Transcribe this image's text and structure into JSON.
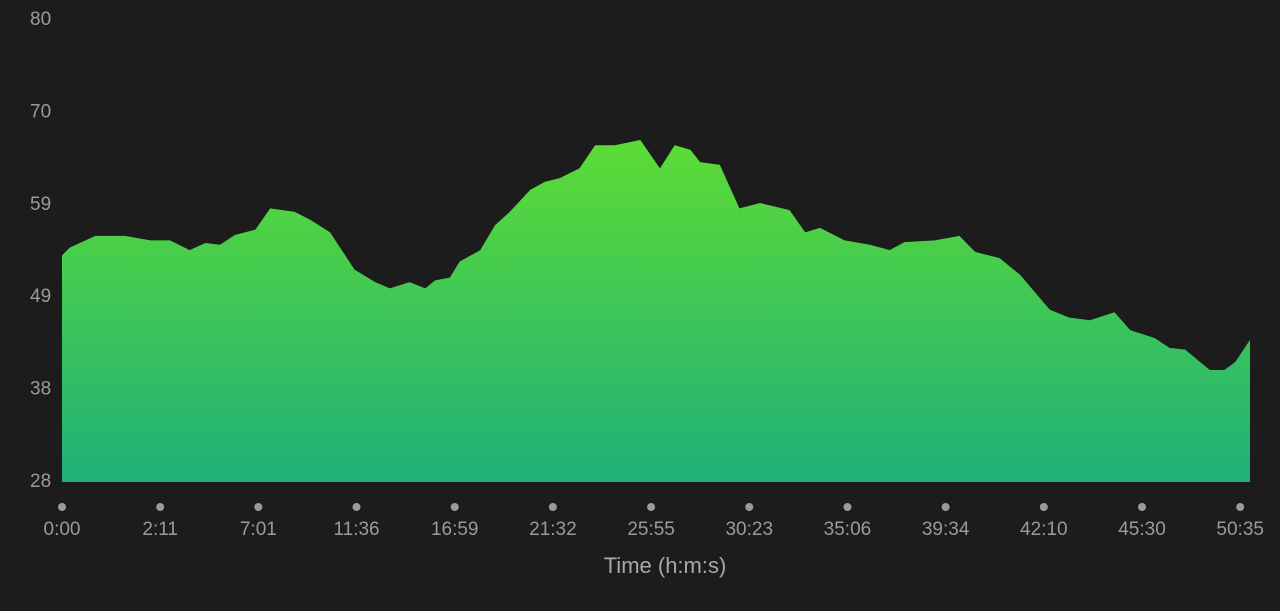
{
  "chart_data": {
    "type": "area",
    "x_label": "Time (h:m:s)",
    "x": [
      0,
      0.08,
      0.34,
      0.64,
      0.9,
      1.1,
      1.3,
      1.46,
      1.61,
      1.76,
      1.97,
      2.12,
      2.37,
      2.53,
      2.73,
      2.98,
      3.19,
      3.34,
      3.54,
      3.7,
      3.8,
      3.95,
      4.05,
      4.26,
      4.41,
      4.56,
      4.77,
      4.92,
      5.07,
      5.27,
      5.43,
      5.63,
      5.89,
      6.09,
      6.24,
      6.4,
      6.5,
      6.7,
      6.9,
      7.11,
      7.41,
      7.57,
      7.72,
      7.97,
      8.23,
      8.43,
      8.58,
      8.89,
      9.14,
      9.3,
      9.55,
      9.76,
      10.06,
      10.26,
      10.47,
      10.72,
      10.88,
      11.13,
      11.28,
      11.44,
      11.69,
      11.84,
      11.95,
      12.1
    ],
    "values": [
      53.5,
      54.4,
      55.7,
      55.7,
      55.2,
      55.2,
      54.1,
      54.9,
      54.7,
      55.8,
      56.4,
      58.8,
      58.4,
      57.5,
      56.1,
      51.9,
      50.5,
      49.8,
      50.5,
      49.8,
      50.7,
      51.0,
      52.8,
      54.1,
      56.9,
      58.4,
      60.9,
      61.8,
      62.2,
      63.3,
      65.9,
      65.9,
      66.5,
      63.3,
      65.9,
      65.4,
      64.0,
      63.7,
      58.8,
      59.4,
      58.6,
      56.1,
      56.6,
      55.2,
      54.7,
      54.1,
      55.0,
      55.2,
      55.7,
      53.9,
      53.2,
      51.3,
      47.4,
      46.5,
      46.2,
      47.1,
      45.1,
      44.2,
      43.1,
      42.9,
      40.6,
      40.6,
      41.5,
      44.0
    ],
    "gradient": [
      "#5ddc35",
      "#1fb079"
    ],
    "xlim": [
      0,
      12.1
    ],
    "xticks": [
      {
        "value": 0,
        "label": "0:00"
      },
      {
        "value": 1,
        "label": "2:11"
      },
      {
        "value": 2,
        "label": "7:01"
      },
      {
        "value": 3,
        "label": "11:36"
      },
      {
        "value": 4,
        "label": "16:59"
      },
      {
        "value": 5,
        "label": "21:32"
      },
      {
        "value": 6,
        "label": "25:55"
      },
      {
        "value": 7,
        "label": "30:23"
      },
      {
        "value": 8,
        "label": "35:06"
      },
      {
        "value": 9,
        "label": "39:34"
      },
      {
        "value": 10,
        "label": "42:10"
      },
      {
        "value": 11,
        "label": "45:30"
      },
      {
        "value": 12,
        "label": "50:35"
      }
    ],
    "ylim": [
      28,
      80
    ],
    "yticks": [
      28,
      {
        "value": 38.4,
        "label": "38"
      },
      {
        "value": 48.8,
        "label": "49"
      },
      {
        "value": 59.2,
        "label": "59"
      },
      {
        "value": 69.6,
        "label": "70"
      },
      80
    ]
  }
}
